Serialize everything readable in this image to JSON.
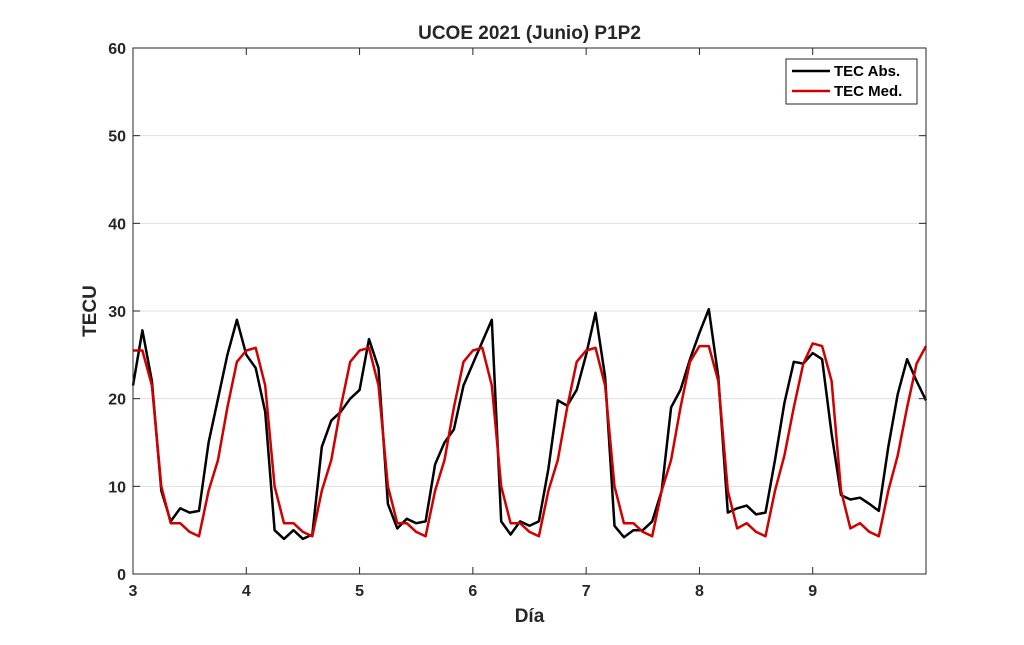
{
  "chart_data": {
    "type": "line",
    "title": "UCOE 2021 (Junio) P1P2",
    "xlabel": "Día",
    "ylabel": "TECU",
    "xlim": [
      3,
      10
    ],
    "ylim": [
      0,
      60
    ],
    "xticks": [
      3,
      4,
      5,
      6,
      7,
      8,
      9
    ],
    "yticks": [
      0,
      10,
      20,
      30,
      40,
      50,
      60
    ],
    "grid": true,
    "legend_position": "top-right",
    "series": [
      {
        "name": "TEC Abs.",
        "color": "#000000",
        "x": [
          3.0,
          3.083,
          3.167,
          3.25,
          3.333,
          3.417,
          3.5,
          3.583,
          3.667,
          3.75,
          3.833,
          3.917,
          4.0,
          4.083,
          4.167,
          4.25,
          4.333,
          4.417,
          4.5,
          4.583,
          4.667,
          4.75,
          4.833,
          4.917,
          5.0,
          5.083,
          5.167,
          5.25,
          5.333,
          5.417,
          5.5,
          5.583,
          5.667,
          5.75,
          5.833,
          5.917,
          6.0,
          6.083,
          6.167,
          6.25,
          6.333,
          6.417,
          6.5,
          6.583,
          6.667,
          6.75,
          6.833,
          6.917,
          7.0,
          7.083,
          7.167,
          7.25,
          7.333,
          7.417,
          7.5,
          7.583,
          7.667,
          7.75,
          7.833,
          7.917,
          8.0,
          8.083,
          8.167,
          8.25,
          8.333,
          8.417,
          8.5,
          8.583,
          8.667,
          8.75,
          8.833,
          8.917,
          9.0,
          9.083,
          9.167,
          9.25,
          9.333,
          9.417,
          9.5,
          9.583,
          9.667,
          9.75,
          9.833,
          9.917,
          10.0
        ],
        "y": [
          21.5,
          27.8,
          22.0,
          9.5,
          6.0,
          7.5,
          7.0,
          7.2,
          15.0,
          20.0,
          25.0,
          29.0,
          25.0,
          23.5,
          18.5,
          5.0,
          4.0,
          5.0,
          4.0,
          4.5,
          14.5,
          17.5,
          18.5,
          20.0,
          21.0,
          26.8,
          23.5,
          8.0,
          5.2,
          6.3,
          5.8,
          6.0,
          12.5,
          15.0,
          16.5,
          21.5,
          24.0,
          26.5,
          29.0,
          6.0,
          4.5,
          6.0,
          5.5,
          6.0,
          12.0,
          19.8,
          19.2,
          21.0,
          25.0,
          29.8,
          22.5,
          5.5,
          4.2,
          5.0,
          5.0,
          6.0,
          9.5,
          19.0,
          21.0,
          24.5,
          27.5,
          30.2,
          22.5,
          7.0,
          7.5,
          7.8,
          6.8,
          7.0,
          13.0,
          19.5,
          24.2,
          24.0,
          25.2,
          24.5,
          16.0,
          9.0,
          8.5,
          8.7,
          8.0,
          7.2,
          14.5,
          20.5,
          24.5,
          22.0,
          19.8
        ]
      },
      {
        "name": "TEC Med.",
        "color": "#d00000",
        "x": [
          3.0,
          3.083,
          3.167,
          3.25,
          3.333,
          3.417,
          3.5,
          3.583,
          3.667,
          3.75,
          3.833,
          3.917,
          4.0,
          4.083,
          4.167,
          4.25,
          4.333,
          4.417,
          4.5,
          4.583,
          4.667,
          4.75,
          4.833,
          4.917,
          5.0,
          5.083,
          5.167,
          5.25,
          5.333,
          5.417,
          5.5,
          5.583,
          5.667,
          5.75,
          5.833,
          5.917,
          6.0,
          6.083,
          6.167,
          6.25,
          6.333,
          6.417,
          6.5,
          6.583,
          6.667,
          6.75,
          6.833,
          6.917,
          7.0,
          7.083,
          7.167,
          7.25,
          7.333,
          7.417,
          7.5,
          7.583,
          7.667,
          7.75,
          7.833,
          7.917,
          8.0,
          8.083,
          8.167,
          8.25,
          8.333,
          8.417,
          8.5,
          8.583,
          8.667,
          8.75,
          8.833,
          8.917,
          9.0,
          9.083,
          9.167,
          9.25,
          9.333,
          9.417,
          9.5,
          9.583,
          9.667,
          9.75,
          9.833,
          9.917,
          10.0
        ],
        "y": [
          25.5,
          25.5,
          21.5,
          10.0,
          5.8,
          5.8,
          4.8,
          4.3,
          9.5,
          13.0,
          19.0,
          24.2,
          25.5,
          25.8,
          21.5,
          10.0,
          5.8,
          5.8,
          4.8,
          4.3,
          9.5,
          13.0,
          19.0,
          24.2,
          25.5,
          25.8,
          21.5,
          10.0,
          5.8,
          5.8,
          4.8,
          4.3,
          9.5,
          13.0,
          19.0,
          24.2,
          25.5,
          25.8,
          21.5,
          10.0,
          5.8,
          5.8,
          4.8,
          4.3,
          9.5,
          13.0,
          19.0,
          24.2,
          25.5,
          25.8,
          21.5,
          10.0,
          5.8,
          5.8,
          4.8,
          4.3,
          9.5,
          13.0,
          19.0,
          24.2,
          26.0,
          26.0,
          22.0,
          9.5,
          5.2,
          5.8,
          4.8,
          4.3,
          9.5,
          13.5,
          19.0,
          24.0,
          26.3,
          26.0,
          22.0,
          9.5,
          5.2,
          5.8,
          4.8,
          4.3,
          9.5,
          13.5,
          19.0,
          24.0,
          26.0
        ]
      }
    ]
  }
}
